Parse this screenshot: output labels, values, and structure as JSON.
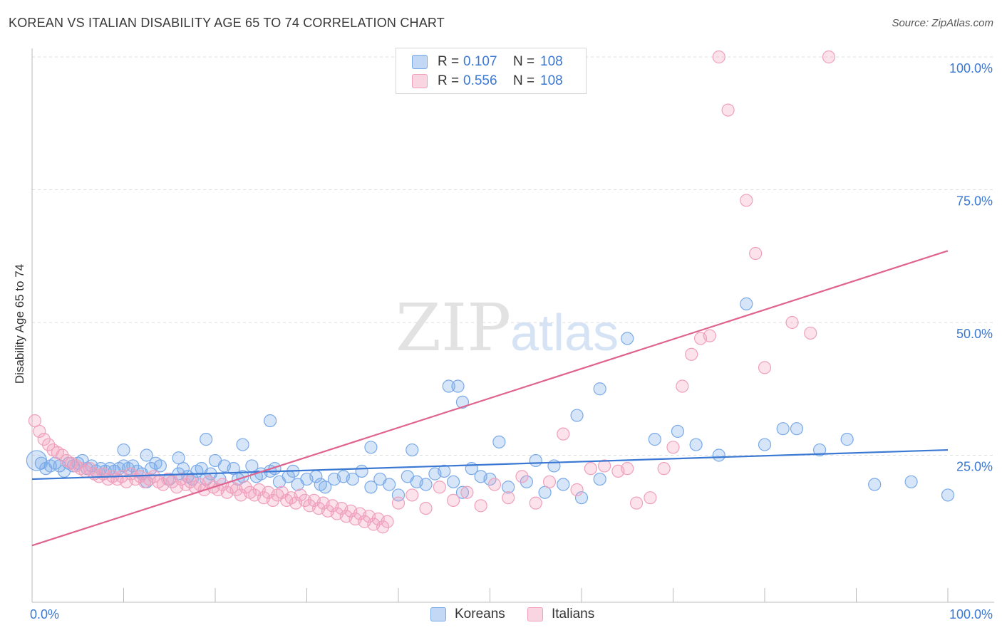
{
  "title": "KOREAN VS ITALIAN DISABILITY AGE 65 TO 74 CORRELATION CHART",
  "source": "Source: ZipAtlas.com",
  "watermark": {
    "zip": "ZIP",
    "atlas": "atlas"
  },
  "legend": {
    "rows": [
      {
        "r_label": "R =",
        "r_value": "0.107",
        "n_label": "N =",
        "n_value": "108",
        "color": "#7aaae8"
      },
      {
        "r_label": "R =",
        "r_value": "0.556",
        "n_label": "N =",
        "n_value": "108",
        "color": "#f2a0bc"
      }
    ]
  },
  "bottom_legend": [
    {
      "label": "Koreans",
      "color": "#7aaae8"
    },
    {
      "label": "Italians",
      "color": "#f2a0bc"
    }
  ],
  "chart_data": {
    "type": "scatter",
    "title": "KOREAN VS ITALIAN DISABILITY AGE 65 TO 74 CORRELATION CHART",
    "xlabel": "",
    "ylabel": "Disability Age 65 to 74",
    "xlim": [
      0,
      100
    ],
    "ylim": [
      0,
      100
    ],
    "x_tick_labels": [
      "0.0%",
      "100.0%"
    ],
    "y_tick_labels": [
      "25.0%",
      "50.0%",
      "75.0%",
      "100.0%"
    ],
    "y_ticks": [
      25,
      50,
      75,
      100
    ],
    "grid": true,
    "series": [
      {
        "name": "Koreans",
        "color": "#3a78d4",
        "fill": "rgba(120,168,232,0.30)",
        "trend": {
          "x": [
            0,
            100
          ],
          "y": [
            20.5,
            26.0
          ]
        },
        "points": [
          [
            0.5,
            24.0
          ],
          [
            1.0,
            23.5
          ],
          [
            1.5,
            22.5
          ],
          [
            2.0,
            23.0
          ],
          [
            2.5,
            23.5
          ],
          [
            3.0,
            23.0
          ],
          [
            3.5,
            22.0
          ],
          [
            4.0,
            23.5
          ],
          [
            4.5,
            23.0
          ],
          [
            5.0,
            23.5
          ],
          [
            5.5,
            24.0
          ],
          [
            6.0,
            22.5
          ],
          [
            6.5,
            23.0
          ],
          [
            7.0,
            22.0
          ],
          [
            7.5,
            22.5
          ],
          [
            8.0,
            22.0
          ],
          [
            8.5,
            22.5
          ],
          [
            9.0,
            22.0
          ],
          [
            9.5,
            22.5
          ],
          [
            10.0,
            23.0
          ],
          [
            10.5,
            22.5
          ],
          [
            11.0,
            23.0
          ],
          [
            11.5,
            22.0
          ],
          [
            12.0,
            21.5
          ],
          [
            12.5,
            20.0
          ],
          [
            13.0,
            22.5
          ],
          [
            13.5,
            23.5
          ],
          [
            14.0,
            23.0
          ],
          [
            15.0,
            20.5
          ],
          [
            16.0,
            21.5
          ],
          [
            16.5,
            22.5
          ],
          [
            17.0,
            21.0
          ],
          [
            17.5,
            20.5
          ],
          [
            18.0,
            22.0
          ],
          [
            18.5,
            22.5
          ],
          [
            19.0,
            20.5
          ],
          [
            19.5,
            21.5
          ],
          [
            20.0,
            24.0
          ],
          [
            20.5,
            20.5
          ],
          [
            21.0,
            23.0
          ],
          [
            22.0,
            22.5
          ],
          [
            22.5,
            20.5
          ],
          [
            23.0,
            21.0
          ],
          [
            24.0,
            23.0
          ],
          [
            24.5,
            21.0
          ],
          [
            25.0,
            21.5
          ],
          [
            26.0,
            22.0
          ],
          [
            26.5,
            22.5
          ],
          [
            27.0,
            20.0
          ],
          [
            28.0,
            21.0
          ],
          [
            28.5,
            22.0
          ],
          [
            29.0,
            19.5
          ],
          [
            30.0,
            20.5
          ],
          [
            31.0,
            21.0
          ],
          [
            31.5,
            19.5
          ],
          [
            32.0,
            19.0
          ],
          [
            33.0,
            20.5
          ],
          [
            34.0,
            21.0
          ],
          [
            35.0,
            20.5
          ],
          [
            36.0,
            22.0
          ],
          [
            37.0,
            19.0
          ],
          [
            38.0,
            20.5
          ],
          [
            39.0,
            19.5
          ],
          [
            40.0,
            17.5
          ],
          [
            41.0,
            21.0
          ],
          [
            42.0,
            20.0
          ],
          [
            43.0,
            19.5
          ],
          [
            44.0,
            21.5
          ],
          [
            45.0,
            22.0
          ],
          [
            46.0,
            20.0
          ],
          [
            47.0,
            18.0
          ],
          [
            48.0,
            22.5
          ],
          [
            49.0,
            21.0
          ],
          [
            50.0,
            20.5
          ],
          [
            52.0,
            19.0
          ],
          [
            54.0,
            20.0
          ],
          [
            56.0,
            18.0
          ],
          [
            58.0,
            19.5
          ],
          [
            60.0,
            17.0
          ],
          [
            62.0,
            20.5
          ],
          [
            10.0,
            26.0
          ],
          [
            12.5,
            25.0
          ],
          [
            16.0,
            24.5
          ],
          [
            19.0,
            28.0
          ],
          [
            23.0,
            27.0
          ],
          [
            26.0,
            31.5
          ],
          [
            37.0,
            26.5
          ],
          [
            41.5,
            26.0
          ],
          [
            45.5,
            38.0
          ],
          [
            46.5,
            38.0
          ],
          [
            47.0,
            35.0
          ],
          [
            51.0,
            27.5
          ],
          [
            55.0,
            24.0
          ],
          [
            57.0,
            23.0
          ],
          [
            59.5,
            32.5
          ],
          [
            62.0,
            37.5
          ],
          [
            65.0,
            47.0
          ],
          [
            68.0,
            28.0
          ],
          [
            70.5,
            29.5
          ],
          [
            72.5,
            27.0
          ],
          [
            75.0,
            25.0
          ],
          [
            78.0,
            53.5
          ],
          [
            80.0,
            27.0
          ],
          [
            82.0,
            30.0
          ],
          [
            83.5,
            30.0
          ],
          [
            86.0,
            26.0
          ],
          [
            89.0,
            28.0
          ],
          [
            92.0,
            19.5
          ],
          [
            96.0,
            20.0
          ],
          [
            100.0,
            17.5
          ]
        ]
      },
      {
        "name": "Italians",
        "color": "#e0628e",
        "fill": "rgba(242,160,188,0.30)",
        "trend": {
          "x": [
            0,
            100
          ],
          "y": [
            8.0,
            63.5
          ]
        },
        "points": [
          [
            0.3,
            31.5
          ],
          [
            0.8,
            29.5
          ],
          [
            1.3,
            28.0
          ],
          [
            1.8,
            27.0
          ],
          [
            2.3,
            26.0
          ],
          [
            2.8,
            25.5
          ],
          [
            3.3,
            25.0
          ],
          [
            3.8,
            24.0
          ],
          [
            4.3,
            23.5
          ],
          [
            4.8,
            23.0
          ],
          [
            5.3,
            22.5
          ],
          [
            5.8,
            22.0
          ],
          [
            6.3,
            22.5
          ],
          [
            6.8,
            21.5
          ],
          [
            7.3,
            21.0
          ],
          [
            7.8,
            21.5
          ],
          [
            8.3,
            20.5
          ],
          [
            8.8,
            21.0
          ],
          [
            9.3,
            20.5
          ],
          [
            9.8,
            21.0
          ],
          [
            10.3,
            20.0
          ],
          [
            10.8,
            21.5
          ],
          [
            11.3,
            20.5
          ],
          [
            11.8,
            21.0
          ],
          [
            12.3,
            20.0
          ],
          [
            12.8,
            20.5
          ],
          [
            13.3,
            21.0
          ],
          [
            13.8,
            20.0
          ],
          [
            14.3,
            19.5
          ],
          [
            14.8,
            20.5
          ],
          [
            15.3,
            20.0
          ],
          [
            15.8,
            19.0
          ],
          [
            16.3,
            20.5
          ],
          [
            16.8,
            19.5
          ],
          [
            17.3,
            20.0
          ],
          [
            17.8,
            19.0
          ],
          [
            18.3,
            19.5
          ],
          [
            18.8,
            18.5
          ],
          [
            19.3,
            20.0
          ],
          [
            19.8,
            19.0
          ],
          [
            20.3,
            18.5
          ],
          [
            20.8,
            19.5
          ],
          [
            21.3,
            18.0
          ],
          [
            21.8,
            19.0
          ],
          [
            22.3,
            18.5
          ],
          [
            22.8,
            17.5
          ],
          [
            23.3,
            19.0
          ],
          [
            23.8,
            18.0
          ],
          [
            24.3,
            17.5
          ],
          [
            24.8,
            18.5
          ],
          [
            25.3,
            17.0
          ],
          [
            25.8,
            18.0
          ],
          [
            26.3,
            16.5
          ],
          [
            26.8,
            17.5
          ],
          [
            27.3,
            18.0
          ],
          [
            27.8,
            16.5
          ],
          [
            28.3,
            17.0
          ],
          [
            28.8,
            16.0
          ],
          [
            29.3,
            17.5
          ],
          [
            29.8,
            16.5
          ],
          [
            30.3,
            15.5
          ],
          [
            30.8,
            16.5
          ],
          [
            31.3,
            15.0
          ],
          [
            31.8,
            16.0
          ],
          [
            32.3,
            14.5
          ],
          [
            32.8,
            15.5
          ],
          [
            33.3,
            14.0
          ],
          [
            33.8,
            15.0
          ],
          [
            34.3,
            13.5
          ],
          [
            34.8,
            14.5
          ],
          [
            35.3,
            13.0
          ],
          [
            35.8,
            14.0
          ],
          [
            36.3,
            12.5
          ],
          [
            36.8,
            13.5
          ],
          [
            37.3,
            12.0
          ],
          [
            37.8,
            13.0
          ],
          [
            38.3,
            11.5
          ],
          [
            38.8,
            12.5
          ],
          [
            40.0,
            16.0
          ],
          [
            41.5,
            17.5
          ],
          [
            43.0,
            15.0
          ],
          [
            44.5,
            19.0
          ],
          [
            46.0,
            16.5
          ],
          [
            47.5,
            18.0
          ],
          [
            49.0,
            15.5
          ],
          [
            50.5,
            19.5
          ],
          [
            52.0,
            17.0
          ],
          [
            53.5,
            21.0
          ],
          [
            55.0,
            16.0
          ],
          [
            56.5,
            20.0
          ],
          [
            58.0,
            29.0
          ],
          [
            59.5,
            18.5
          ],
          [
            61.0,
            22.5
          ],
          [
            62.5,
            23.0
          ],
          [
            64.0,
            22.0
          ],
          [
            65.0,
            22.5
          ],
          [
            66.0,
            16.0
          ],
          [
            67.5,
            17.0
          ],
          [
            69.0,
            22.5
          ],
          [
            70.0,
            26.5
          ],
          [
            71.0,
            38.0
          ],
          [
            72.0,
            44.0
          ],
          [
            73.0,
            47.0
          ],
          [
            74.0,
            47.5
          ],
          [
            75.0,
            100.0
          ],
          [
            76.0,
            90.0
          ],
          [
            78.0,
            73.0
          ],
          [
            79.0,
            63.0
          ],
          [
            80.0,
            41.5
          ],
          [
            83.0,
            50.0
          ],
          [
            85.0,
            48.0
          ],
          [
            87.0,
            100.0
          ]
        ]
      }
    ]
  }
}
